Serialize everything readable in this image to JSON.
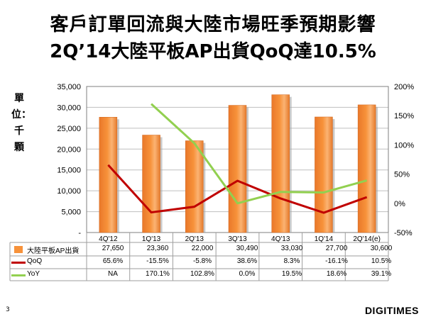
{
  "title": {
    "line1": "客戶訂單回流與大陸市場旺季預期影響",
    "line2": "2Q’14大陸平板AP出貨QoQ達10.5%"
  },
  "unit_label": "單位：千顆",
  "colors": {
    "bar": "#F7923A",
    "qoq": "#C00000",
    "yoy": "#92D050"
  },
  "chart_data": {
    "type": "bar",
    "categories": [
      "4Q'12",
      "1Q'13",
      "2Q'13",
      "3Q'13",
      "4Q'13",
      "1Q'14",
      "2Q'14(e)"
    ],
    "y_left": {
      "min": 0,
      "max": 35000,
      "step": 5000,
      "ticks": [
        "-",
        "5,000",
        "10,000",
        "15,000",
        "20,000",
        "25,000",
        "30,000",
        "35,000"
      ]
    },
    "y_right": {
      "min": -50,
      "max": 200,
      "step": 50,
      "ticks": [
        "-50%",
        "0%",
        "50%",
        "100%",
        "150%",
        "200%"
      ]
    },
    "series": [
      {
        "name": "大陸平板AP出貨",
        "type": "bar",
        "axis": "left",
        "values": [
          27650,
          23360,
          22000,
          30490,
          33030,
          27700,
          30600
        ],
        "labels": [
          "27,650",
          "23,360",
          "22,000",
          "30,490",
          "33,030",
          "27,700",
          "30,600"
        ]
      },
      {
        "name": "QoQ",
        "type": "line",
        "axis": "right",
        "values": [
          65.6,
          -15.5,
          -5.8,
          38.6,
          8.3,
          -16.1,
          10.5
        ],
        "labels": [
          "65.6%",
          "-15.5%",
          "-5.8%",
          "38.6%",
          "8.3%",
          "-16.1%",
          "10.5%"
        ]
      },
      {
        "name": "YoY",
        "type": "line",
        "axis": "right",
        "values": [
          null,
          170.1,
          102.8,
          0.0,
          19.5,
          18.6,
          39.1
        ],
        "labels": [
          "NA",
          "170.1%",
          "102.8%",
          "0.0%",
          "19.5%",
          "18.6%",
          "39.1%"
        ]
      }
    ]
  },
  "page_number": "3",
  "logo": "DIGITIMES"
}
